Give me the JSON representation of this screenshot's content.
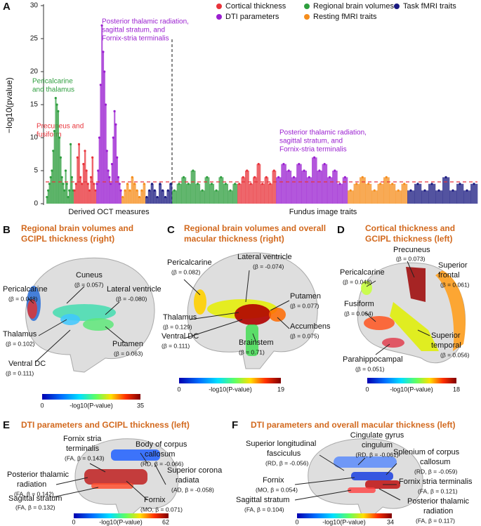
{
  "chart_data": {
    "type": "scatter",
    "letter": "A",
    "ylabel": "−log10(pvalue)",
    "ylim": [
      0,
      30
    ],
    "yticks": [
      0,
      5,
      10,
      15,
      20,
      25,
      30
    ],
    "threshold": 3.3,
    "parts": [
      "Derived OCT measures",
      "Fundus image traits"
    ],
    "series": [
      {
        "name": "Cortical thickness",
        "color": "#e8333a"
      },
      {
        "name": "DTI parameters",
        "color": "#9a1fd0"
      },
      {
        "name": "Regional brain volumes",
        "color": "#2e9e3e"
      },
      {
        "name": "Resting fMRI traits",
        "color": "#f58d1c"
      },
      {
        "name": "Task fMRI traits",
        "color": "#1a1a80"
      }
    ],
    "segments": [
      {
        "series": 2,
        "part": 0,
        "values": [
          1,
          2,
          3,
          4,
          5,
          8,
          11,
          16,
          15,
          14,
          10,
          7,
          4,
          3,
          2,
          5,
          3,
          1,
          2,
          9,
          4,
          2
        ]
      },
      {
        "series": 0,
        "part": 0,
        "values": [
          2,
          3,
          7,
          9,
          4,
          3,
          6,
          8,
          5,
          3,
          2,
          4,
          7,
          3,
          2
        ]
      },
      {
        "series": 1,
        "part": 0,
        "values": [
          3,
          5,
          10,
          18,
          27,
          23,
          20,
          15,
          8,
          5,
          4,
          3,
          6,
          10,
          14,
          12,
          7,
          4,
          3,
          2
        ]
      },
      {
        "series": 3,
        "part": 0,
        "values": [
          1,
          2,
          3,
          2,
          4,
          3,
          2,
          1,
          2,
          3
        ]
      },
      {
        "series": 4,
        "part": 0,
        "values": [
          1,
          2,
          3,
          2,
          1,
          3,
          2,
          1,
          2,
          3
        ]
      },
      {
        "series": 2,
        "part": 1,
        "values": [
          2,
          3,
          4,
          3,
          5,
          3,
          2,
          4,
          3,
          2,
          4,
          3,
          2,
          3
        ]
      },
      {
        "series": 0,
        "part": 1,
        "values": [
          3,
          4,
          5,
          3,
          4,
          6,
          3,
          4,
          3,
          5
        ]
      },
      {
        "series": 1,
        "part": 1,
        "values": [
          4,
          6,
          5,
          4,
          6,
          5,
          4,
          7,
          5,
          6,
          4,
          5,
          3,
          4
        ]
      },
      {
        "series": 3,
        "part": 1,
        "values": [
          2,
          3,
          4,
          3,
          2,
          3,
          4,
          3,
          2,
          3
        ]
      },
      {
        "series": 4,
        "part": 1,
        "values": [
          2,
          3,
          2,
          3,
          2,
          4,
          2,
          3,
          2,
          3
        ]
      }
    ],
    "annotations": [
      {
        "lines": [
          "Pericalcarine",
          "and thalamus"
        ],
        "series": 2
      },
      {
        "lines": [
          "Precuneus and",
          "fusiform"
        ],
        "series": 0
      },
      {
        "lines": [
          "Posterior thalamic radiation,",
          "sagittal stratum, and",
          "Fornix-stria terminalis"
        ],
        "series": 1
      },
      {
        "lines": [
          "Posterior thalamic radiation,",
          "sagittal stratum, and",
          "Fornix-stria terminalis"
        ],
        "series": 1
      }
    ]
  },
  "panels": [
    {
      "letter": "B",
      "title": [
        "Regional brain volumes and",
        "GCIPL thickness (right)"
      ],
      "labels": [
        [
          "Cuneus",
          "(β = 0.057)"
        ],
        [
          "Pericalcarine",
          "(β = 0.048)"
        ],
        [
          "Lateral ventricle",
          "(β = -0.080)"
        ],
        [
          "Thalamus",
          "(β = 0.102)"
        ],
        [
          "Putamen",
          "(β = 0.063)"
        ],
        [
          "Ventral DC",
          "(β = 0.111)"
        ]
      ],
      "colorbar": [
        "0",
        "-log10(P-value)",
        "35"
      ]
    },
    {
      "letter": "C",
      "title": [
        "Regional brain volumes and overall",
        "macular thickness (right)"
      ],
      "labels": [
        [
          "Pericalcarine",
          "(β = 0.082)"
        ],
        [
          "Lateral ventricle",
          "(β = -0.074)"
        ],
        [
          "Putamen",
          "(β = 0.077)"
        ],
        [
          "Thalamus",
          "(β = 0.129)"
        ],
        [
          "Accumbens",
          "(β = 0.075)"
        ],
        [
          "Ventral DC",
          "(β = 0.111)"
        ],
        [
          "Brainstem",
          "(β = 0.71)"
        ]
      ],
      "colorbar": [
        "0",
        "-log10(P-value)",
        "19"
      ]
    },
    {
      "letter": "D",
      "title": [
        "Cortical thickness and",
        "GCIPL thickness (left)"
      ],
      "labels": [
        [
          "Precuneus",
          "(β = 0.073)"
        ],
        [
          "Superior",
          "frontal",
          "(β = 0.061)"
        ],
        [
          "Pericalcarine",
          "(β = 0.048)"
        ],
        [
          "Fusiform",
          "(β = 0.064)"
        ],
        [
          "Parahippocampal",
          "(β = 0.051)"
        ],
        [
          "Superior",
          "temporal",
          "(β = 0.056)"
        ]
      ],
      "colorbar": [
        "0",
        "-log10(P-value)",
        "18"
      ]
    },
    {
      "letter": "E",
      "title": [
        "DTI parameters and GCIPL thickness (left)"
      ],
      "labels": [
        [
          "Fornix stria",
          "terminalis",
          "(FA, β = 0.143)"
        ],
        [
          "Body of corpus",
          "callosum",
          "(RD, β = -0.066)"
        ],
        [
          "Superior corona",
          "radiata",
          "(AD, β = -0.058)"
        ],
        [
          "Posterior thalamic",
          "radiation",
          "(FA, β = 0.142)"
        ],
        [
          "Sagittal stratum",
          "(FA, β = 0.132)"
        ],
        [
          "Fornix",
          "(MO, β = 0.071)"
        ]
      ],
      "colorbar": [
        "0",
        "-log10(P-value)",
        "62"
      ]
    },
    {
      "letter": "F",
      "title": [
        "DTI parameters and overall macular thickness (left)"
      ],
      "labels": [
        [
          "Superior longitudinal",
          "fasciculus",
          "(RD, β = -0.056)"
        ],
        [
          "Cingulate gyrus",
          "cingulum",
          "(RD, β = -0.061)"
        ],
        [
          "Splenium of corpus",
          "callosum",
          "(RD, β = -0.059)"
        ],
        [
          "Fornix",
          "(MO, β = 0.054)"
        ],
        [
          "Fornix stria terminalis",
          "(FA, β = 0.121)"
        ],
        [
          "Sagittal stratum",
          "(FA, β = 0.104)"
        ],
        [
          "Posterior thalamic",
          "radiation",
          "(FA, β = 0.117)"
        ]
      ],
      "colorbar": [
        "0",
        "-log10(P-value)",
        "34"
      ]
    }
  ]
}
